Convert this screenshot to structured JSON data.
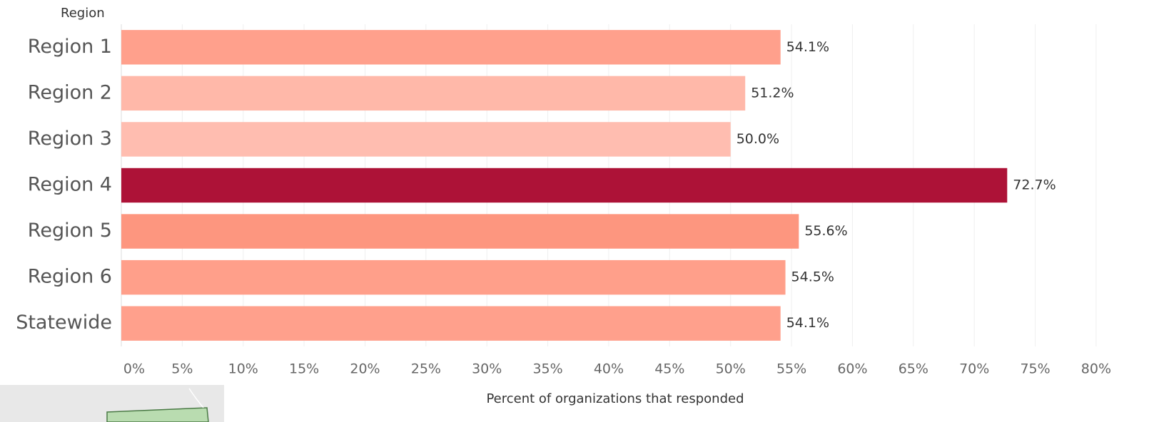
{
  "chart_data": {
    "type": "bar",
    "orientation": "horizontal",
    "y_axis_title": "Region",
    "x_axis_title": "Percent of organizations that responded",
    "categories": [
      "Region 1",
      "Region 2",
      "Region 3",
      "Region 4",
      "Region 5",
      "Region 6",
      "Statewide"
    ],
    "values": [
      54.1,
      51.2,
      50.0,
      72.7,
      55.6,
      54.5,
      54.1
    ],
    "value_labels": [
      "54.1%",
      "51.2%",
      "50.0%",
      "72.7%",
      "55.6%",
      "54.5%",
      "54.1%"
    ],
    "colors": [
      "#ffa08c",
      "#ffb8a9",
      "#ffbdb0",
      "#ad1237",
      "#fd967f",
      "#ff9f8a",
      "#ffa08c"
    ],
    "xlim": [
      0,
      81
    ],
    "xticks": [
      {
        "value": 0,
        "label": "0%"
      },
      {
        "value": 5,
        "label": "5%"
      },
      {
        "value": 10,
        "label": "10%"
      },
      {
        "value": 15,
        "label": "15%"
      },
      {
        "value": 20,
        "label": "20%"
      },
      {
        "value": 25,
        "label": "25%"
      },
      {
        "value": 30,
        "label": "30%"
      },
      {
        "value": 35,
        "label": "35%"
      },
      {
        "value": 40,
        "label": "40%"
      },
      {
        "value": 45,
        "label": "45%"
      },
      {
        "value": 50,
        "label": "50%"
      },
      {
        "value": 55,
        "label": "55%"
      },
      {
        "value": 60,
        "label": "60%"
      },
      {
        "value": 65,
        "label": "65%"
      },
      {
        "value": 70,
        "label": "70%"
      },
      {
        "value": 75,
        "label": "75%"
      },
      {
        "value": 80,
        "label": "80%"
      }
    ],
    "grid": true
  }
}
